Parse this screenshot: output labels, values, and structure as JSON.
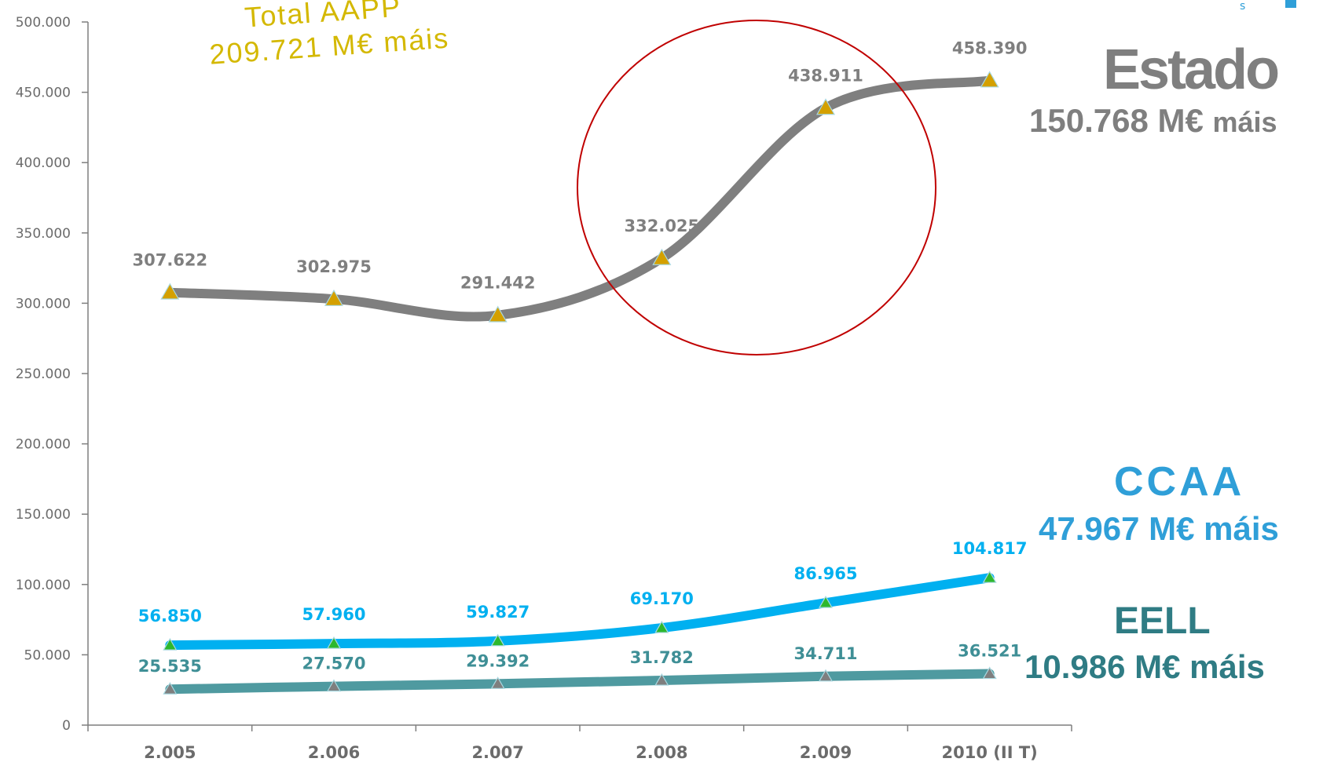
{
  "chart_data": {
    "type": "line",
    "categories": [
      "2.005",
      "2.006",
      "2.007",
      "2.008",
      "2.009",
      "2010 (II T)"
    ],
    "ylim": [
      0,
      500000
    ],
    "yticks": [
      0,
      50000,
      100000,
      150000,
      200000,
      250000,
      300000,
      350000,
      400000,
      450000,
      500000
    ],
    "ytick_labels": [
      "0",
      "50.000",
      "100.000",
      "150.000",
      "200.000",
      "250.000",
      "300.000",
      "350.000",
      "400.000",
      "450.000",
      "500.000"
    ],
    "legend": "none",
    "grid": false,
    "series": [
      {
        "name": "Estado",
        "values": [
          307622,
          302975,
          291442,
          332025,
          438911,
          458390
        ],
        "labels": [
          "307.622",
          "302.975",
          "291.442",
          "332.025",
          "438.911",
          "458.390"
        ],
        "color": "#7f7f7f",
        "marker_color": "#d4a000"
      },
      {
        "name": "CCAA",
        "values": [
          56850,
          57960,
          59827,
          69170,
          86965,
          104817
        ],
        "labels": [
          "56.850",
          "57.960",
          "59.827",
          "69.170",
          "86.965",
          "104.817"
        ],
        "color": "#00b0f0",
        "marker_color": "#2db82d"
      },
      {
        "name": "EELL",
        "values": [
          25535,
          27570,
          29392,
          31782,
          34711,
          36521
        ],
        "labels": [
          "25.535",
          "27.570",
          "29.392",
          "31.782",
          "34.711",
          "36.521"
        ],
        "color": "#4f9aa0",
        "marker_color": "#7f7f7f"
      }
    ],
    "annotations": {
      "total": {
        "line1": "Total AAPP",
        "line2_value": "209.721 M€",
        "line2_word": "máis",
        "color": "#d4b800"
      },
      "estado": {
        "title": "Estado",
        "value": "150.768 M€",
        "word": "máis",
        "color": "#7f7f7f"
      },
      "ccaa": {
        "title": "CCAA",
        "value": "47.967 M€",
        "word": "máis",
        "color": "#2f9fd8"
      },
      "eell": {
        "title": "EELL",
        "value": "10.986 M€",
        "word": "máis",
        "color": "#2f7c84"
      },
      "highlight_circle_color": "#c00000"
    }
  },
  "corner": {
    "letter": "s"
  }
}
